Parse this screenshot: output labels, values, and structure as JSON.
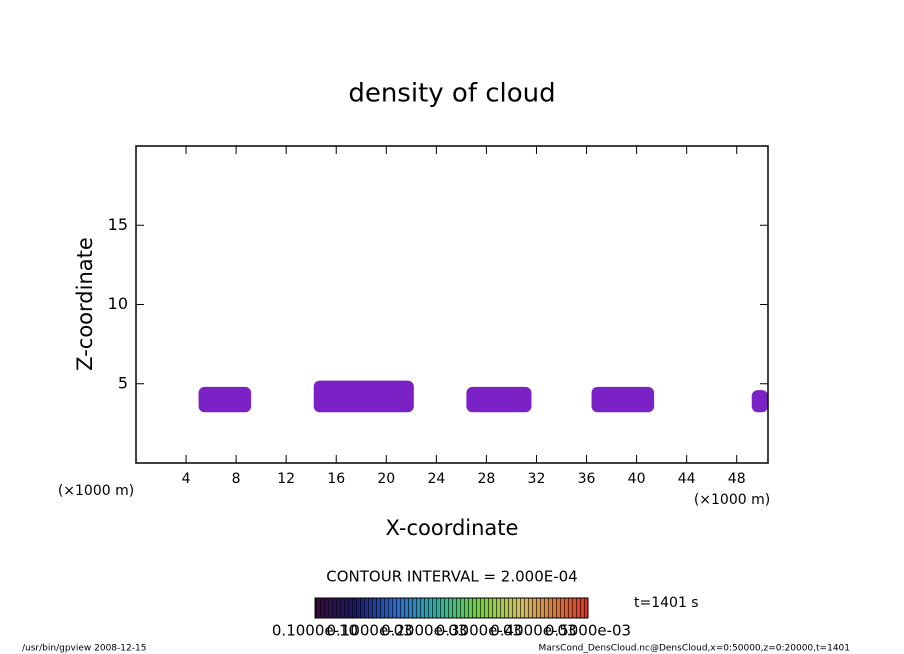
{
  "chart_data": {
    "type": "contour",
    "title": "density of cloud",
    "x_label": "X-coordinate",
    "y_label": "Z-coordinate",
    "x_unit": "(×1000 m)",
    "y_unit": "(×1000 m)",
    "xlim": [
      0,
      50.5
    ],
    "ylim": [
      0,
      20
    ],
    "xticks": [
      4,
      8,
      12,
      16,
      20,
      24,
      28,
      32,
      36,
      40,
      44,
      48
    ],
    "yticks": [
      5,
      10,
      15
    ],
    "color": "#7a22c6",
    "regions": [
      {
        "x": [
          5,
          9.2
        ],
        "z": [
          3.2,
          4.8
        ]
      },
      {
        "x": [
          14.2,
          22.2
        ],
        "z": [
          3.2,
          5.2
        ]
      },
      {
        "x": [
          26.4,
          31.6
        ],
        "z": [
          3.2,
          4.8
        ]
      },
      {
        "x": [
          36.4,
          41.4
        ],
        "z": [
          3.2,
          4.8
        ]
      },
      {
        "x": [
          49.2,
          50.5
        ],
        "z": [
          3.2,
          4.6
        ]
      }
    ],
    "contour_interval": "CONTOUR INTERVAL = 2.000E-04",
    "time_label": "t=1401 s",
    "colorbar_labels": [
      "0.1000e-10",
      "0.1000e-03",
      "0.2000e-03",
      "0.3000e-03",
      "0.4000e-03",
      "0.5000e-03"
    ],
    "footer_left": "/usr/bin/gpview   2008-12-15",
    "footer_right": "MarsCond_DensCloud.nc@DensCloud,x=0:50000,z=0:20000,t=1401"
  }
}
